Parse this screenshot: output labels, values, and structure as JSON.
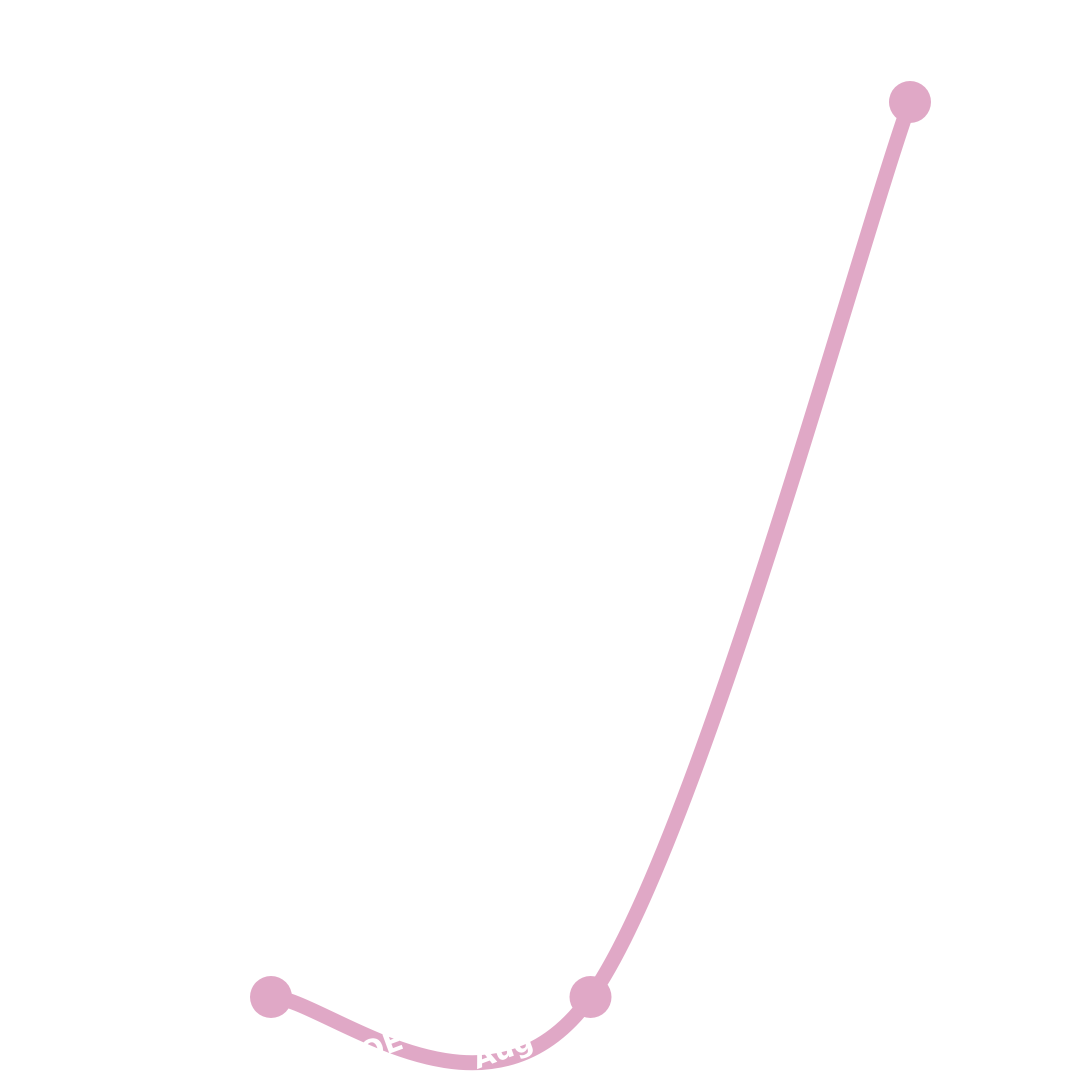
{
  "chart_data": {
    "type": "line",
    "x": [
      0,
      1,
      2
    ],
    "tick_labels": [
      "ROE",
      "Aug",
      ""
    ],
    "series": [
      {
        "values": [
          0.0,
          0.0,
          1.0
        ],
        "color": "#e0a8c6"
      }
    ],
    "ylim": [
      0,
      1
    ],
    "grid": false,
    "legend": "none"
  }
}
